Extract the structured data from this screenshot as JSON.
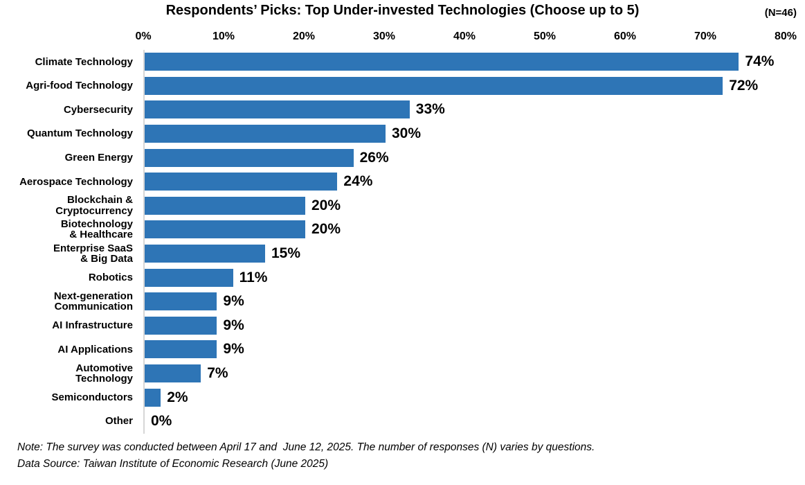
{
  "chart_data": {
    "type": "bar",
    "orientation": "horizontal",
    "title": "Respondents’ Picks: Top Under-invested Technologies (Choose up to 5)",
    "n_label": "(N=46)",
    "categories": [
      "Climate Technology",
      "Agri-food Technology",
      "Cybersecurity",
      "Quantum Technology",
      "Green Energy",
      "Aerospace Technology",
      "Blockchain & Cryptocurrency",
      "Biotechnology & Healthcare",
      "Enterprise SaaS & Big Data",
      "Robotics",
      "Next-generation Communication",
      "AI Infrastructure",
      "AI Applications",
      "Automotive Technology",
      "Semiconductors",
      "Other"
    ],
    "label_lines": [
      [
        "Climate Technology"
      ],
      [
        "Agri-food Technology"
      ],
      [
        "Cybersecurity"
      ],
      [
        "Quantum Technology"
      ],
      [
        "Green Energy"
      ],
      [
        "Aerospace Technology"
      ],
      [
        "Blockchain &",
        "Cryptocurrency"
      ],
      [
        "Biotechnology",
        "& Healthcare"
      ],
      [
        "Enterprise SaaS",
        "& Big Data"
      ],
      [
        "Robotics"
      ],
      [
        "Next-generation",
        "Communication"
      ],
      [
        "AI Infrastructure"
      ],
      [
        "AI Applications"
      ],
      [
        "Automotive",
        "Technology"
      ],
      [
        "Semiconductors"
      ],
      [
        "Other"
      ]
    ],
    "values": [
      74,
      72,
      33,
      30,
      26,
      24,
      20,
      20,
      15,
      11,
      9,
      9,
      9,
      7,
      2,
      0
    ],
    "value_labels": [
      "74%",
      "72%",
      "33%",
      "30%",
      "26%",
      "24%",
      "20%",
      "20%",
      "15%",
      "11%",
      "9%",
      "9%",
      "9%",
      "7%",
      "2%",
      "0%"
    ],
    "x_ticks": [
      "0%",
      "10%",
      "20%",
      "30%",
      "40%",
      "50%",
      "60%",
      "70%",
      "80%"
    ],
    "xlim": [
      0,
      80
    ],
    "bar_color": "#2e75b6",
    "axis_line_color": "#d6d6d6",
    "grid": false,
    "legend": false,
    "data_labels": true,
    "tick_position": "top"
  },
  "notes": {
    "note": "Note: The survey was conducted between April 17 and  June 12, 2025. The number of responses (N) varies by questions.",
    "source": "Data Source: Taiwan Institute of Economic Research (June 2025)"
  }
}
